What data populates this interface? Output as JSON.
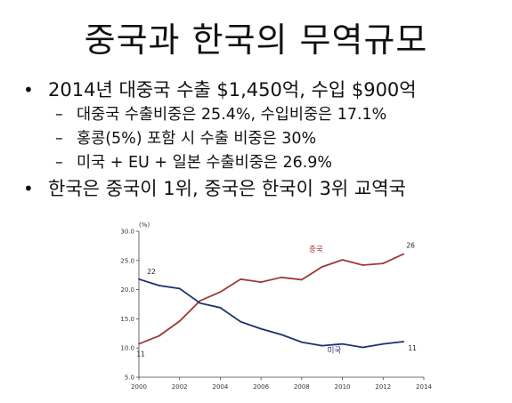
{
  "slide": {
    "title": "중국과 한국의 무역규모",
    "bullets": [
      {
        "marker": "•",
        "text": "2014년 대중국 수출 $1,450억, 수입 $900억",
        "sub": [
          {
            "marker": "–",
            "text": "대중국 수출비중은 25.4%, 수입비중은 17.1%"
          },
          {
            "marker": "–",
            "text": "홍콩(5%) 포함 시 수출 비중은 30%"
          },
          {
            "marker": "–",
            "text": "미국 + EU + 일본 수출비중은 26.9%"
          }
        ]
      },
      {
        "marker": "•",
        "text": "한국은 중국이 1위, 중국은 한국이 3위 교역국"
      }
    ]
  },
  "chart_data": {
    "type": "line",
    "ylabel": "(%)",
    "xlim": [
      2000,
      2014
    ],
    "ylim": [
      5.0,
      30.0
    ],
    "x_ticks": [
      2000,
      2002,
      2004,
      2006,
      2008,
      2010,
      2012,
      2014
    ],
    "y_ticks": [
      "5.0",
      "10.0",
      "15.0",
      "20.0",
      "25.0",
      "30.0"
    ],
    "legend": "inline labels",
    "series": [
      {
        "name": "중국",
        "color": "#9e3a38",
        "x": [
          2000,
          2001,
          2002,
          2003,
          2004,
          2005,
          2006,
          2007,
          2008,
          2009,
          2010,
          2011,
          2012,
          2013
        ],
        "values": [
          10.7,
          12.1,
          14.6,
          18.1,
          19.6,
          21.8,
          21.3,
          22.1,
          21.7,
          23.9,
          25.1,
          24.2,
          24.5,
          26.1
        ],
        "label_pos": [
          2008.7,
          26.5
        ],
        "annotations": [
          {
            "text": "11",
            "x": 2000,
            "y": 10.7
          },
          {
            "text": "26",
            "x": 2013,
            "y": 26.1
          }
        ]
      },
      {
        "name": "미국",
        "color": "#1f2f6e",
        "x": [
          2000,
          2001,
          2002,
          2003,
          2004,
          2005,
          2006,
          2007,
          2008,
          2009,
          2010,
          2011,
          2012,
          2013
        ],
        "values": [
          21.8,
          20.7,
          20.2,
          17.7,
          16.9,
          14.5,
          13.3,
          12.3,
          11.0,
          10.4,
          10.7,
          10.1,
          10.7,
          11.1
        ],
        "label_pos": [
          2009.6,
          9.2
        ],
        "annotations": [
          {
            "text": "22",
            "x": 2000,
            "y": 21.8
          },
          {
            "text": "11",
            "x": 2013,
            "y": 11.1
          }
        ]
      }
    ]
  }
}
